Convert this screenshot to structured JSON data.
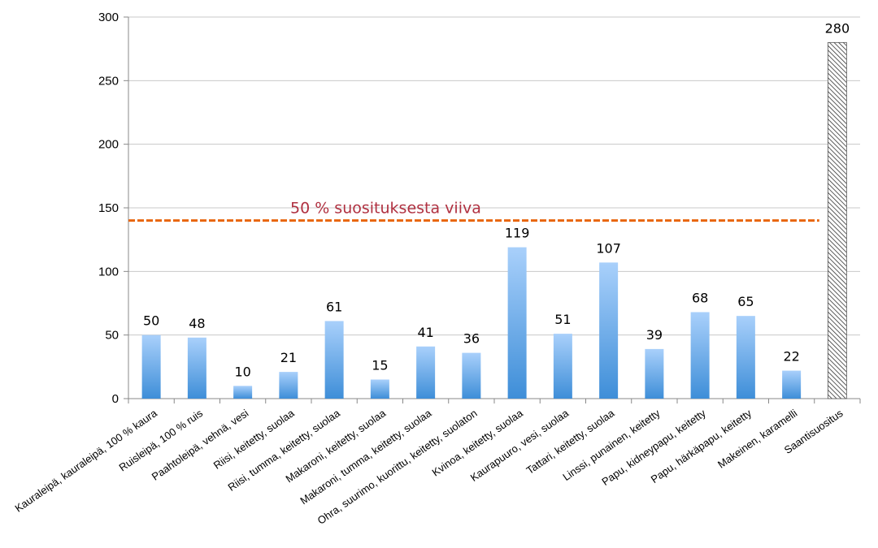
{
  "chart_data": {
    "type": "bar",
    "categories": [
      "Kauraleipä, kauraleipä, 100 % kaura",
      "Ruisleipä, 100 % ruis",
      "Paahtoleipä, vehnä, vesi",
      "Riisi, keitetty, suolaa",
      "Riisi, tumma, keitetty, suolaa",
      "Makaroni, keitetty, suolaa",
      "Makaroni, tumma, keitetty, suolaa",
      "Ohra, suurimo, kuorittu, keitetty, suolaton",
      "Kvinoa, keitetty, suolaa",
      "Kaurapuuro, vesi, suolaa",
      "Tattari, keitetty, suolaa",
      "Linssi, punainen, keitetty",
      "Papu, kidneypapu, keitetty",
      "Papu, härkäpapu, keitetty",
      "Makeinen, karamelli",
      "Saantisuositus"
    ],
    "values": [
      50,
      48,
      10,
      21,
      61,
      15,
      41,
      36,
      119,
      51,
      107,
      39,
      68,
      65,
      22,
      280
    ],
    "value_labels": [
      "50",
      "48",
      "10",
      "21",
      "61",
      "15",
      "41",
      "36",
      "119",
      "51",
      "107",
      "39",
      "68",
      "65",
      "22",
      "280"
    ],
    "highlight": {
      "index": 15,
      "style": "hatched"
    },
    "y_ticks": [
      "0",
      "50",
      "100",
      "150",
      "200",
      "250",
      "300"
    ],
    "ylim": [
      0,
      300
    ],
    "grid": true,
    "reference_line": {
      "value": 140,
      "label": "50 % suosituksesta viiva",
      "color": "#e8650c",
      "label_color": "#b03040"
    },
    "colors": {
      "bar_top": "#a9d0fb",
      "bar_bottom": "#3e8ed8",
      "hatch": "#333333",
      "grid": "#c8c8c8"
    }
  }
}
